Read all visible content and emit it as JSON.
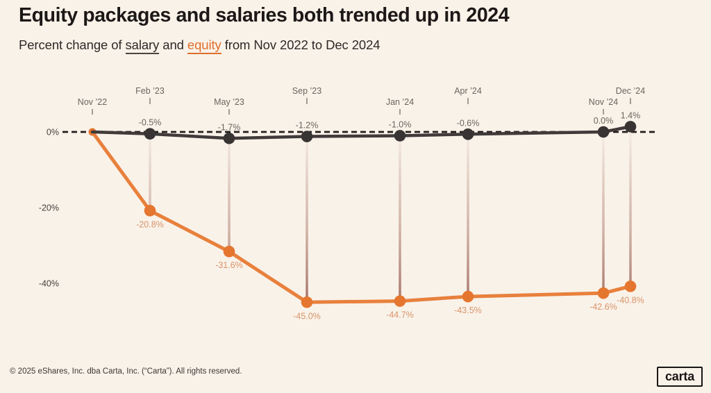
{
  "header": {
    "title": "Equity packages and salaries both trended up in 2024",
    "subtitle_prefix": "Percent change of ",
    "subtitle_salary": "salary",
    "subtitle_mid": " and ",
    "subtitle_equity": "equity",
    "subtitle_suffix": " from Nov 2022 to Dec 2024"
  },
  "footer": {
    "copyright": "© 2025 eShares, Inc. dba Carta, Inc. (“Carta”). All rights reserved.",
    "logo": "carta"
  },
  "colors": {
    "background": "#f9f2e9",
    "salary_line": "#403b3a",
    "salary_dot": "#383434",
    "equity_line": "#e8803c",
    "equity_dot": "#e5762f",
    "zero_dash": "#211d1c",
    "tick": "#8d867e",
    "drop_top": "#a06b5f",
    "drop_bottom": "#9c6458"
  },
  "chart_data": {
    "type": "line",
    "title": "Equity packages and salaries both trended up in 2024",
    "subtitle": "Percent change of salary and equity from Nov 2022 to Dec 2024",
    "categories": [
      "Nov ’22",
      "Feb ’23",
      "May ’23",
      "Sep ’23",
      "Jan ’24",
      "Apr ’24",
      "Nov ’24",
      "Dec ’24"
    ],
    "series": [
      {
        "name": "salary",
        "color": "#403b3a",
        "values": [
          0,
          -0.5,
          -1.7,
          -1.2,
          -1.0,
          -0.6,
          0.0,
          1.4
        ],
        "labels": [
          "",
          "-0.5%",
          "-1.7%",
          "-1.2%",
          "-1.0%",
          "-0.6%",
          "0.0%",
          "1.4%"
        ]
      },
      {
        "name": "equity",
        "color": "#e5762f",
        "values": [
          0,
          -20.8,
          -31.6,
          -45.0,
          -44.7,
          -43.5,
          -42.6,
          -40.8
        ],
        "labels": [
          "",
          "-20.8%",
          "-31.6%",
          "-45.0%",
          "-44.7%",
          "-43.5%",
          "-42.6%",
          "-40.8%"
        ]
      }
    ],
    "y_ticks": [
      "0%",
      "-20%",
      "-40%"
    ],
    "y_tick_values": [
      0,
      -20,
      -40
    ],
    "ylim": [
      -50,
      5
    ],
    "zero_line": "dashed",
    "grid": "off",
    "legend_position": "none",
    "x_axis_position": "top"
  }
}
